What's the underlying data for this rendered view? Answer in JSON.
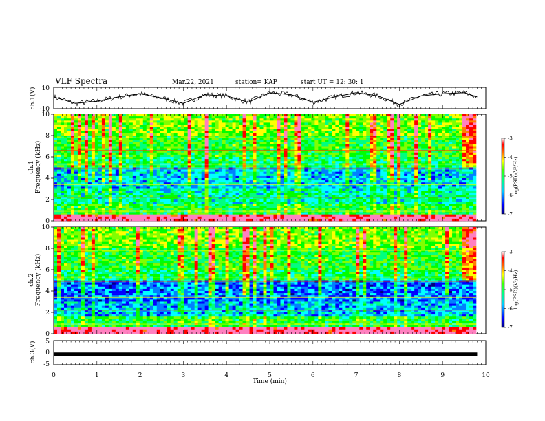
{
  "header": {
    "title": "VLF Spectra",
    "date": "Mar.22, 2021",
    "station": "station= KAP",
    "start": "start  UT =   12: 30: 1"
  },
  "colors": {
    "spectrum": [
      "#00007f",
      "#0000ff",
      "#0080ff",
      "#00ffff",
      "#00ff80",
      "#00ff00",
      "#80ff00",
      "#ffff00",
      "#ff8000",
      "#ff0000",
      "#ff80c0",
      "#ffffff"
    ],
    "trace": "#000000"
  },
  "chart_data": [
    {
      "type": "line",
      "ylabel": "ch.1(V)",
      "ylim": [
        -10,
        10
      ],
      "yticks": [
        "10",
        "-10"
      ],
      "xlim": [
        0,
        10
      ],
      "x": [
        0,
        0.5,
        1,
        1.5,
        2,
        2.5,
        3,
        3.5,
        4,
        4.5,
        5,
        5.5,
        6,
        6.5,
        7,
        7.5,
        8,
        8.5,
        9,
        9.5,
        9.8
      ],
      "y": [
        1,
        -5,
        -3,
        1,
        4,
        0,
        -5,
        3,
        2,
        -4,
        5,
        3,
        -4,
        1,
        5,
        2,
        -6,
        2,
        4,
        5,
        1
      ]
    },
    {
      "type": "heatmap",
      "ylabel": "ch.1\nFrequency (kHz)",
      "ylim": [
        0,
        10
      ],
      "yticks": [
        "0",
        "2",
        "4",
        "6",
        "8",
        "10"
      ],
      "xlim": [
        0,
        10
      ],
      "colorbar": {
        "label": "log(PSD)(V²/Hz)",
        "range": [
          -7,
          -3
        ],
        "ticks": [
          "-3",
          "-4",
          "-5",
          "-6",
          "-7"
        ]
      }
    },
    {
      "type": "heatmap",
      "ylabel": "ch.2\nFrequency (kHz)",
      "ylim": [
        0,
        10
      ],
      "yticks": [
        "0",
        "2",
        "4",
        "6",
        "8",
        "10"
      ],
      "xlim": [
        0,
        10
      ],
      "colorbar": {
        "label": "log(PSD)(V²/Hz)",
        "range": [
          -7,
          -3
        ],
        "ticks": [
          "-3",
          "-4",
          "-5",
          "-6",
          "-7"
        ]
      }
    },
    {
      "type": "line",
      "ylabel": "ch.3(V)",
      "ylim": [
        -5,
        5
      ],
      "yticks": [
        "5",
        "0",
        "-5"
      ],
      "xlim": [
        0,
        9.8
      ],
      "x": [
        0,
        9.8
      ],
      "y": [
        -0.5,
        -0.5
      ],
      "xlabel": "Time (min)",
      "xticks": [
        "0",
        "1",
        "2",
        "3",
        "4",
        "5",
        "6",
        "7",
        "8",
        "9",
        "10"
      ]
    }
  ]
}
